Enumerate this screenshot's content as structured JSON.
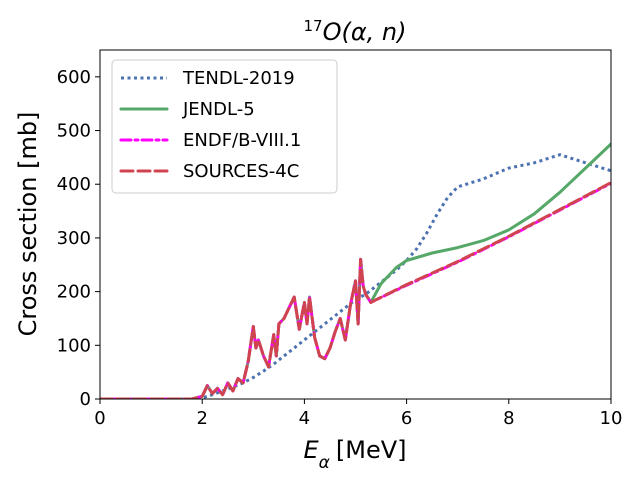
{
  "chart_data": {
    "type": "line",
    "title": "17O(α, n)",
    "title_parts": {
      "superscript": "17",
      "base": "O(α, n)"
    },
    "xlabel": "Eα [MeV]",
    "xlabel_parts": {
      "symbol": "E",
      "subscript": "α",
      "unit": "[MeV]"
    },
    "ylabel": "Cross section [mb]",
    "xlim": [
      0,
      10
    ],
    "ylim": [
      0,
      650
    ],
    "xticks": [
      0,
      2,
      4,
      6,
      8,
      10
    ],
    "yticks": [
      0,
      100,
      200,
      300,
      400,
      500,
      600
    ],
    "grid": false,
    "legend_position": "upper-left",
    "series": [
      {
        "name": "TENDL-2019",
        "style": "dotted",
        "color": "#4c72b0",
        "x": [
          0,
          1.8,
          2.0,
          2.2,
          2.4,
          2.6,
          2.8,
          3.0,
          3.2,
          3.4,
          3.6,
          3.8,
          4.0,
          4.2,
          4.4,
          4.6,
          4.8,
          5.0,
          5.2,
          5.4,
          5.6,
          5.8,
          6.0,
          6.2,
          6.4,
          6.6,
          6.8,
          7.0,
          7.5,
          8.0,
          8.5,
          9.0,
          9.5,
          10.0
        ],
        "y": [
          0,
          0,
          2,
          8,
          15,
          22,
          30,
          40,
          52,
          65,
          80,
          95,
          110,
          125,
          140,
          155,
          170,
          185,
          195,
          210,
          225,
          240,
          258,
          280,
          310,
          345,
          375,
          395,
          410,
          430,
          440,
          455,
          440,
          425
        ]
      },
      {
        "name": "JENDL-5",
        "style": "solid",
        "color": "#55a868",
        "x": [
          0,
          1.8,
          2.0,
          2.1,
          2.2,
          2.3,
          2.4,
          2.5,
          2.6,
          2.7,
          2.8,
          2.9,
          3.0,
          3.05,
          3.1,
          3.2,
          3.3,
          3.4,
          3.45,
          3.5,
          3.6,
          3.7,
          3.8,
          3.85,
          3.9,
          4.0,
          4.05,
          4.1,
          4.2,
          4.3,
          4.4,
          4.5,
          4.6,
          4.7,
          4.8,
          4.9,
          5.0,
          5.05,
          5.1,
          5.15,
          5.2,
          5.3,
          5.5,
          5.8,
          6.0,
          6.5,
          7.0,
          7.5,
          8.0,
          8.5,
          9.0,
          9.5,
          10.0
        ],
        "y": [
          0,
          0,
          5,
          25,
          10,
          20,
          8,
          30,
          15,
          38,
          30,
          70,
          135,
          95,
          110,
          80,
          60,
          120,
          80,
          140,
          150,
          170,
          190,
          160,
          130,
          180,
          140,
          190,
          115,
          80,
          75,
          95,
          125,
          150,
          110,
          175,
          220,
          140,
          260,
          210,
          195,
          180,
          215,
          245,
          258,
          272,
          282,
          295,
          315,
          345,
          385,
          430,
          475
        ]
      },
      {
        "name": "ENDF/B-VIII.1",
        "style": "dashdot",
        "color": "#ff00ff",
        "x": [
          0,
          1.8,
          2.0,
          2.1,
          2.2,
          2.3,
          2.4,
          2.5,
          2.6,
          2.7,
          2.8,
          2.9,
          3.0,
          3.05,
          3.1,
          3.2,
          3.3,
          3.4,
          3.45,
          3.5,
          3.6,
          3.7,
          3.8,
          3.85,
          3.9,
          4.0,
          4.05,
          4.1,
          4.2,
          4.3,
          4.4,
          4.5,
          4.6,
          4.7,
          4.8,
          4.9,
          5.0,
          5.05,
          5.1,
          5.15,
          5.2,
          5.3,
          6.0,
          7.0,
          8.0,
          9.0,
          10.0
        ],
        "y": [
          0,
          0,
          5,
          25,
          10,
          20,
          8,
          30,
          15,
          38,
          30,
          70,
          135,
          95,
          110,
          80,
          60,
          120,
          80,
          140,
          150,
          170,
          190,
          160,
          130,
          180,
          140,
          190,
          115,
          80,
          75,
          95,
          125,
          150,
          110,
          175,
          220,
          140,
          260,
          210,
          195,
          180,
          212,
          255,
          302,
          352,
          402
        ]
      },
      {
        "name": "SOURCES-4C",
        "style": "dashed",
        "color": "#d0444f",
        "x": [
          0,
          1.8,
          2.0,
          2.1,
          2.2,
          2.3,
          2.4,
          2.5,
          2.6,
          2.7,
          2.8,
          2.9,
          3.0,
          3.05,
          3.1,
          3.2,
          3.3,
          3.4,
          3.45,
          3.5,
          3.6,
          3.7,
          3.8,
          3.85,
          3.9,
          4.0,
          4.05,
          4.1,
          4.2,
          4.3,
          4.4,
          4.5,
          4.6,
          4.7,
          4.8,
          4.9,
          5.0,
          5.05,
          5.1,
          5.15,
          5.2,
          5.3,
          6.0,
          7.0,
          8.0,
          9.0,
          10.0
        ],
        "y": [
          0,
          0,
          5,
          25,
          10,
          20,
          8,
          30,
          15,
          38,
          30,
          70,
          135,
          95,
          110,
          80,
          60,
          120,
          80,
          140,
          150,
          170,
          190,
          160,
          130,
          180,
          140,
          190,
          115,
          80,
          75,
          95,
          125,
          150,
          110,
          175,
          220,
          140,
          260,
          210,
          195,
          180,
          213,
          256,
          303,
          353,
          403
        ]
      }
    ]
  }
}
